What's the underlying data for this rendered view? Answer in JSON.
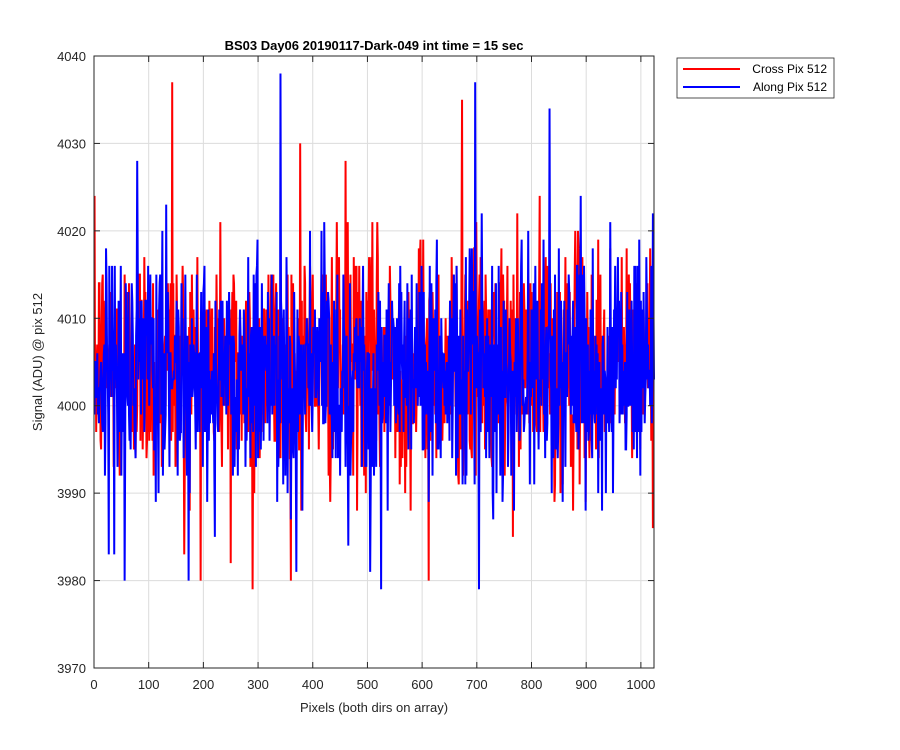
{
  "chart_data": {
    "type": "line",
    "title": "BS03 Day06 20190117-Dark-049 int time = 15 sec",
    "xlabel": "Pixels (both dirs on array)",
    "ylabel": "Signal (ADU) @ pix 512",
    "xlim": [
      0,
      1024
    ],
    "ylim": [
      3970,
      4040
    ],
    "xticks": [
      0,
      100,
      200,
      300,
      400,
      500,
      600,
      700,
      800,
      900,
      1000
    ],
    "yticks": [
      3970,
      3980,
      3990,
      4000,
      4010,
      4020,
      4030,
      4040
    ],
    "grid": true,
    "legend_position": "outside-top-right",
    "x": {
      "start": 1,
      "end": 1024,
      "step": 1
    },
    "series": [
      {
        "name": "Cross Pix 512",
        "color": "#ff0000",
        "values_range": [
          3979,
          4037
        ],
        "mean": 4005,
        "noise_description": "approx. gaussian scatter, std ~7 ADU",
        "notable_points": [
          {
            "x": 143,
            "y": 4037
          },
          {
            "x": 290,
            "y": 3979
          },
          {
            "x": 673,
            "y": 4035
          },
          {
            "x": 612,
            "y": 3980
          },
          {
            "x": 165,
            "y": 3983
          },
          {
            "x": 250,
            "y": 3982
          },
          {
            "x": 377,
            "y": 4030
          },
          {
            "x": 460,
            "y": 4028
          }
        ]
      },
      {
        "name": "Along Pix 512",
        "color": "#0000ff",
        "values_range": [
          3979,
          4038
        ],
        "mean": 4004,
        "noise_description": "approx. gaussian scatter, std ~7 ADU",
        "notable_points": [
          {
            "x": 341,
            "y": 4038
          },
          {
            "x": 697,
            "y": 4037
          },
          {
            "x": 56,
            "y": 3980
          },
          {
            "x": 525,
            "y": 3979
          },
          {
            "x": 704,
            "y": 3979
          },
          {
            "x": 833,
            "y": 4034
          },
          {
            "x": 370,
            "y": 3981
          },
          {
            "x": 505,
            "y": 3981
          }
        ]
      }
    ]
  }
}
